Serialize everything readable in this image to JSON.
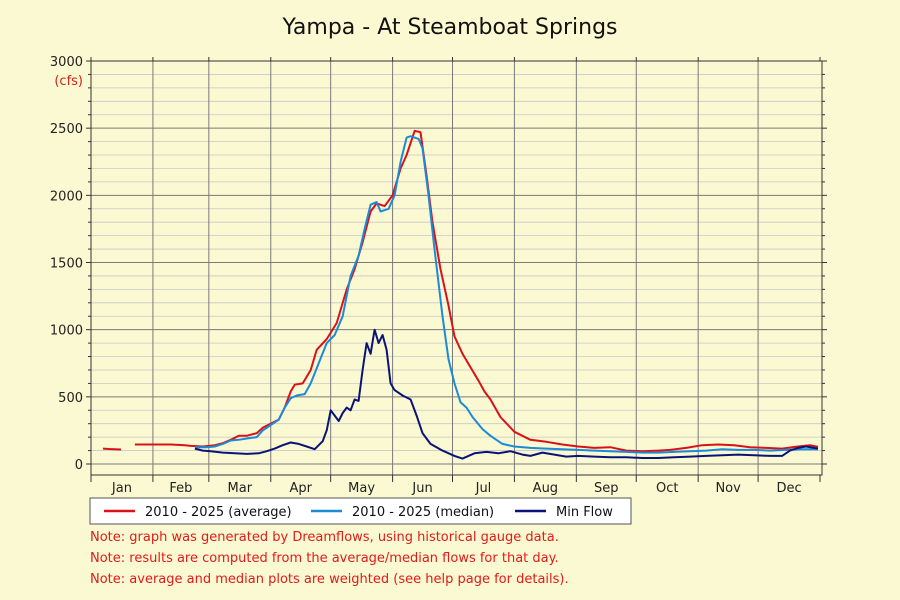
{
  "chart_data": {
    "type": "line",
    "title": "Yampa - At Steamboat Springs",
    "ylabel": "(cfs)",
    "ylim": [
      0,
      3000
    ],
    "yticks": [
      0,
      500,
      1000,
      1500,
      2000,
      2500,
      3000
    ],
    "xlim": [
      0,
      366
    ],
    "x_unit": "day of year",
    "months": [
      "Jan",
      "Feb",
      "Mar",
      "Apr",
      "May",
      "Jun",
      "Jul",
      "Aug",
      "Sep",
      "Oct",
      "Nov",
      "Dec"
    ],
    "grid": true,
    "legend_placement": "bottom",
    "series": [
      {
        "name": "2010 - 2025 (average)",
        "color": "#d9121a",
        "segments": [
          [
            [
              6,
              115
            ],
            [
              9,
              112
            ],
            [
              12,
              110
            ],
            [
              15,
              108
            ]
          ],
          [
            [
              22,
              145
            ],
            [
              30,
              145
            ],
            [
              40,
              145
            ],
            [
              47,
              140
            ],
            [
              50,
              135
            ],
            [
              56,
              130
            ],
            [
              62,
              140
            ],
            [
              66,
              155
            ],
            [
              70,
              180
            ],
            [
              74,
              210
            ],
            [
              78,
              210
            ],
            [
              83,
              230
            ],
            [
              86,
              270
            ],
            [
              90,
              300
            ],
            [
              94,
              330
            ],
            [
              97,
              420
            ],
            [
              100,
              540
            ],
            [
              102,
              590
            ],
            [
              106,
              600
            ],
            [
              110,
              700
            ],
            [
              113,
              850
            ],
            [
              118,
              930
            ],
            [
              123,
              1050
            ],
            [
              128,
              1300
            ],
            [
              132,
              1450
            ],
            [
              136,
              1650
            ],
            [
              140,
              1880
            ],
            [
              143,
              1940
            ],
            [
              147,
              1920
            ],
            [
              151,
              2000
            ],
            [
              155,
              2200
            ],
            [
              158,
              2300
            ],
            [
              162,
              2480
            ],
            [
              165,
              2470
            ],
            [
              168,
              2150
            ],
            [
              171,
              1800
            ],
            [
              175,
              1450
            ],
            [
              179,
              1180
            ],
            [
              182,
              950
            ],
            [
              186,
              820
            ],
            [
              190,
              720
            ],
            [
              194,
              620
            ],
            [
              197,
              540
            ],
            [
              200,
              480
            ],
            [
              205,
              350
            ],
            [
              212,
              240
            ],
            [
              220,
              180
            ],
            [
              228,
              165
            ],
            [
              236,
              145
            ],
            [
              244,
              130
            ],
            [
              252,
              120
            ],
            [
              260,
              125
            ],
            [
              268,
              100
            ],
            [
              276,
              95
            ],
            [
              284,
              100
            ],
            [
              290,
              105
            ],
            [
              298,
              120
            ],
            [
              306,
              140
            ],
            [
              314,
              145
            ],
            [
              322,
              140
            ],
            [
              330,
              125
            ],
            [
              338,
              120
            ],
            [
              346,
              115
            ],
            [
              354,
              130
            ],
            [
              360,
              140
            ],
            [
              364,
              128
            ]
          ]
        ]
      },
      {
        "name": "2010 - 2025 (median)",
        "color": "#1b8bd8",
        "segments": [
          [
            [
              52,
              125
            ],
            [
              58,
              125
            ],
            [
              62,
              130
            ],
            [
              66,
              150
            ],
            [
              70,
              175
            ],
            [
              74,
              180
            ],
            [
              78,
              190
            ],
            [
              83,
              200
            ],
            [
              86,
              250
            ],
            [
              90,
              290
            ],
            [
              94,
              330
            ],
            [
              97,
              420
            ],
            [
              100,
              490
            ],
            [
              103,
              510
            ],
            [
              107,
              520
            ],
            [
              110,
              600
            ],
            [
              114,
              750
            ],
            [
              118,
              900
            ],
            [
              122,
              960
            ],
            [
              126,
              1100
            ],
            [
              130,
              1400
            ],
            [
              134,
              1550
            ],
            [
              137,
              1750
            ],
            [
              140,
              1930
            ],
            [
              143,
              1950
            ],
            [
              145,
              1880
            ],
            [
              149,
              1900
            ],
            [
              152,
              2000
            ],
            [
              155,
              2250
            ],
            [
              158,
              2430
            ],
            [
              160,
              2440
            ],
            [
              164,
              2420
            ],
            [
              166,
              2350
            ],
            [
              169,
              2000
            ],
            [
              172,
              1600
            ],
            [
              176,
              1100
            ],
            [
              179,
              780
            ],
            [
              182,
              600
            ],
            [
              185,
              460
            ],
            [
              188,
              420
            ],
            [
              191,
              350
            ],
            [
              196,
              260
            ],
            [
              200,
              210
            ],
            [
              206,
              150
            ],
            [
              212,
              130
            ],
            [
              220,
              120
            ],
            [
              228,
              115
            ],
            [
              236,
              110
            ],
            [
              244,
              105
            ],
            [
              252,
              100
            ],
            [
              260,
              95
            ],
            [
              268,
              90
            ],
            [
              276,
              85
            ],
            [
              284,
              85
            ],
            [
              292,
              90
            ],
            [
              300,
              95
            ],
            [
              308,
              100
            ],
            [
              316,
              110
            ],
            [
              324,
              105
            ],
            [
              332,
              105
            ],
            [
              340,
              100
            ],
            [
              348,
              105
            ],
            [
              356,
              110
            ],
            [
              364,
              110
            ]
          ]
        ]
      },
      {
        "name": "Min Flow",
        "color": "#0a1478",
        "segments": [
          [
            [
              52,
              115
            ],
            [
              56,
              100
            ],
            [
              60,
              95
            ],
            [
              66,
              85
            ],
            [
              72,
              80
            ],
            [
              78,
              75
            ],
            [
              84,
              80
            ],
            [
              88,
              95
            ],
            [
              92,
              115
            ],
            [
              96,
              140
            ],
            [
              100,
              160
            ],
            [
              104,
              150
            ],
            [
              108,
              130
            ],
            [
              112,
              110
            ],
            [
              116,
              170
            ],
            [
              118,
              250
            ],
            [
              120,
              400
            ],
            [
              122,
              360
            ],
            [
              124,
              320
            ],
            [
              126,
              380
            ],
            [
              128,
              420
            ],
            [
              130,
              400
            ],
            [
              132,
              480
            ],
            [
              134,
              470
            ],
            [
              136,
              700
            ],
            [
              138,
              900
            ],
            [
              140,
              820
            ],
            [
              142,
              1000
            ],
            [
              144,
              900
            ],
            [
              146,
              960
            ],
            [
              148,
              850
            ],
            [
              150,
              600
            ],
            [
              152,
              550
            ],
            [
              156,
              510
            ],
            [
              160,
              480
            ],
            [
              163,
              360
            ],
            [
              166,
              230
            ],
            [
              170,
              150
            ],
            [
              176,
              100
            ],
            [
              182,
              60
            ],
            [
              186,
              40
            ],
            [
              192,
              80
            ],
            [
              198,
              90
            ],
            [
              204,
              80
            ],
            [
              210,
              95
            ],
            [
              216,
              70
            ],
            [
              220,
              60
            ],
            [
              226,
              85
            ],
            [
              232,
              70
            ],
            [
              238,
              55
            ],
            [
              244,
              60
            ],
            [
              252,
              55
            ],
            [
              260,
              50
            ],
            [
              268,
              50
            ],
            [
              276,
              45
            ],
            [
              284,
              45
            ],
            [
              292,
              50
            ],
            [
              300,
              55
            ],
            [
              308,
              60
            ],
            [
              316,
              65
            ],
            [
              324,
              70
            ],
            [
              332,
              65
            ],
            [
              340,
              60
            ],
            [
              346,
              60
            ],
            [
              350,
              100
            ],
            [
              354,
              120
            ],
            [
              358,
              130
            ],
            [
              362,
              120
            ],
            [
              364,
              115
            ]
          ]
        ]
      }
    ]
  },
  "notes": [
    "Note: graph was generated by Dreamflows, using historical gauge data.",
    "Note: results are computed from the average/median flows for that day.",
    "Note: average and median plots are weighted (see help page for details)."
  ]
}
